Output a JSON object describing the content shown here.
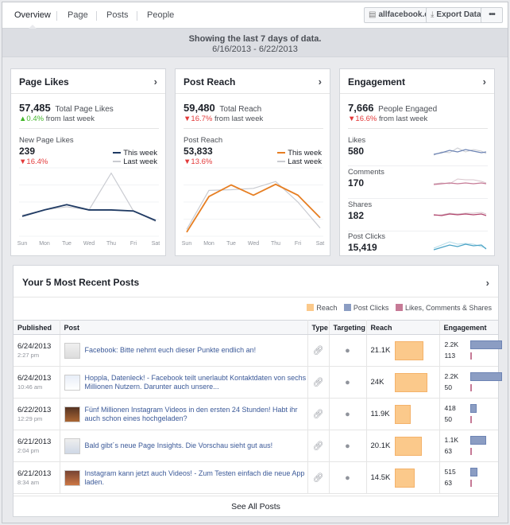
{
  "nav": {
    "tabs": [
      "Overview",
      "Page",
      "Posts",
      "People"
    ],
    "site_button": "allfacebook.de",
    "export_button": "Export Data",
    "more_button": "•••"
  },
  "range": {
    "title": "Showing the last 7 days of data.",
    "dates": "6/16/2013 - 6/22/2013"
  },
  "page_likes": {
    "title": "Page Likes",
    "total": "57,485",
    "total_label": "Total Page Likes",
    "total_delta": "0.4%",
    "total_delta_suffix": "from last week",
    "sub_label": "New Page Likes",
    "sub_value": "239",
    "sub_delta": "16.4%",
    "legend_this": "This week",
    "legend_last": "Last week",
    "colors": {
      "this": "#1f3a63",
      "last": "#c9cbd1"
    }
  },
  "post_reach": {
    "title": "Post Reach",
    "total": "59,480",
    "total_label": "Total Reach",
    "total_delta": "16.7%",
    "total_delta_suffix": "from last week",
    "sub_label": "Post Reach",
    "sub_value": "53,833",
    "sub_delta": "13.6%",
    "legend_this": "This week",
    "legend_last": "Last week",
    "colors": {
      "this": "#e67e22",
      "last": "#c9cbd1"
    }
  },
  "engagement": {
    "title": "Engagement",
    "total": "7,666",
    "total_label": "People Engaged",
    "total_delta": "16.6%",
    "total_delta_suffix": "from last week",
    "rows": [
      {
        "label": "Likes",
        "value": "580",
        "color": "#6d84b4"
      },
      {
        "label": "Comments",
        "value": "170",
        "color": "#c67a96"
      },
      {
        "label": "Shares",
        "value": "182",
        "color": "#b1446c"
      },
      {
        "label": "Post Clicks",
        "value": "15,419",
        "color": "#4aa3c6"
      }
    ]
  },
  "days": [
    "Sun",
    "Mon",
    "Tue",
    "Wed",
    "Thu",
    "Fri",
    "Sat"
  ],
  "posts": {
    "title": "Your 5 Most Recent Posts",
    "legend": {
      "reach": "Reach",
      "clicks": "Post Clicks",
      "likes": "Likes, Comments & Shares"
    },
    "columns": [
      "Published",
      "Post",
      "Type",
      "Targeting",
      "Reach",
      "Engagement"
    ],
    "rows": [
      {
        "date": "6/24/2013",
        "time": "2:27 pm",
        "text": "Facebook: Bitte nehmt euch dieser Punkte endlich an!",
        "reach": "21.1K",
        "reach_k": 21.1,
        "eng1": "2.2K",
        "eng2": "113"
      },
      {
        "date": "6/24/2013",
        "time": "10:46 am",
        "text": "Hoppla, Datenleck! - Facebook teilt unerlaubt Kontaktdaten von sechs Millionen Nutzern. Darunter auch unsere...",
        "reach": "24K",
        "reach_k": 24,
        "eng1": "2.2K",
        "eng2": "50"
      },
      {
        "date": "6/22/2013",
        "time": "12:29 pm",
        "text": "Fünf Millionen Instagram Videos in den ersten 24 Stunden! Habt ihr auch schon eines hochgeladen?",
        "reach": "11.9K",
        "reach_k": 11.9,
        "eng1": "418",
        "eng2": "50"
      },
      {
        "date": "6/21/2013",
        "time": "2:04 pm",
        "text": "Bald gibt´s neue Page Insights. Die Vorschau sieht gut aus!",
        "reach": "20.1K",
        "reach_k": 20.1,
        "eng1": "1.1K",
        "eng2": "63"
      },
      {
        "date": "6/21/2013",
        "time": "8:34 am",
        "text": "Instagram kann jetzt auch Videos! - Zum Testen einfach die neue App laden.",
        "reach": "14.5K",
        "reach_k": 14.5,
        "eng1": "515",
        "eng2": "63"
      }
    ],
    "see_all": "See All Posts"
  },
  "chart_data": [
    {
      "type": "line",
      "title": "Page Likes",
      "categories": [
        "Sun",
        "Mon",
        "Tue",
        "Wed",
        "Thu",
        "Fri",
        "Sat"
      ],
      "series": [
        {
          "name": "This week",
          "values": [
            38,
            50,
            60,
            50,
            50,
            48,
            30
          ]
        },
        {
          "name": "Last week",
          "values": [
            40,
            50,
            56,
            50,
            120,
            48,
            28
          ]
        }
      ],
      "ylim": [
        0,
        130
      ]
    },
    {
      "type": "line",
      "title": "Post Reach",
      "categories": [
        "Sun",
        "Mon",
        "Tue",
        "Wed",
        "Thu",
        "Fri",
        "Sat"
      ],
      "series": [
        {
          "name": "This week",
          "values": [
            6,
            58,
            75,
            60,
            76,
            60,
            27
          ]
        },
        {
          "name": "Last week",
          "values": [
            10,
            67,
            68,
            70,
            80,
            50,
            12
          ]
        }
      ],
      "ylim": [
        0,
        100
      ]
    }
  ]
}
